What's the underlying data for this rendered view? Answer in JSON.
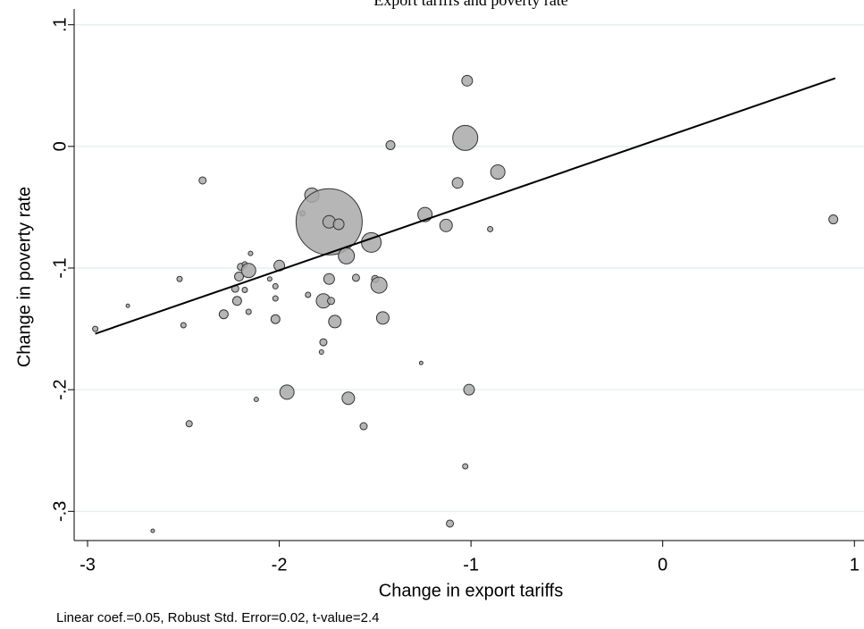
{
  "chart_data": {
    "type": "scatter",
    "title": "Export tariffs and poverty rate",
    "x_label": "Change in export tariffs",
    "y_label": "Change in poverty rate",
    "note": "Linear coef.=0.05, Robust Std. Error=0.02, t-value=2.4",
    "xlim": [
      -3.07,
      1.05
    ],
    "ylim": [
      -0.324,
      0.113
    ],
    "xticks": [
      -3,
      -2,
      -1,
      0,
      1
    ],
    "yticks": [
      {
        "value": 0.1,
        "label": ".1"
      },
      0,
      {
        "value": -0.1,
        "label": "-.1"
      },
      {
        "value": -0.2,
        "label": "-.2"
      },
      {
        "value": -0.3,
        "label": "-.3"
      }
    ],
    "grid": true,
    "color": "#a9a9a9",
    "x": [
      -2.96,
      -2.79,
      -2.66,
      -2.52,
      -2.5,
      -2.47,
      -2.4,
      -2.29,
      -2.22,
      -2.23,
      -2.21,
      -2.2,
      -2.18,
      -2.18,
      -2.16,
      -2.15,
      -2.16,
      -2.12,
      -2.05,
      -2.02,
      -2.02,
      -2.02,
      -2.0,
      -1.96,
      -1.88,
      -1.85,
      -1.83,
      -1.78,
      -1.77,
      -1.77,
      -1.74,
      -1.74,
      -1.73,
      -1.71,
      -1.74,
      -1.69,
      -1.65,
      -1.64,
      -1.6,
      -1.56,
      -1.52,
      -1.5,
      -1.48,
      -1.46,
      -1.42,
      -1.26,
      -1.24,
      -1.13,
      -1.11,
      -1.07,
      -1.03,
      -1.03,
      -1.02,
      -1.01,
      -0.9,
      -0.86,
      0.89
    ],
    "values": [
      -0.15,
      -0.131,
      -0.316,
      -0.109,
      -0.147,
      -0.228,
      -0.028,
      -0.138,
      -0.127,
      -0.117,
      -0.107,
      -0.099,
      -0.097,
      -0.118,
      -0.102,
      -0.088,
      -0.136,
      -0.208,
      -0.109,
      -0.125,
      -0.115,
      -0.142,
      -0.098,
      -0.202,
      -0.055,
      -0.122,
      -0.04,
      -0.169,
      -0.161,
      -0.127,
      -0.062,
      -0.109,
      -0.127,
      -0.144,
      -0.062,
      -0.064,
      -0.09,
      -0.207,
      -0.108,
      -0.23,
      -0.079,
      -0.109,
      -0.114,
      -0.141,
      0.001,
      -0.178,
      -0.056,
      -0.065,
      -0.31,
      -0.03,
      0.007,
      -0.263,
      0.054,
      -0.2,
      -0.068,
      -0.021,
      -0.06
    ],
    "sizes": [
      3,
      2,
      2,
      3,
      3,
      3.5,
      4,
      5,
      5,
      4,
      5,
      4,
      3,
      3,
      8,
      2.5,
      3,
      2.5,
      2.5,
      3,
      3,
      5,
      6,
      8,
      3,
      3,
      8,
      2.5,
      4,
      8,
      37,
      6,
      4,
      7,
      7,
      6,
      9,
      7,
      4,
      4,
      11,
      4,
      9,
      7,
      5,
      2,
      8,
      7,
      4,
      6,
      14,
      3,
      6,
      6,
      3,
      8,
      5
    ],
    "fit": {
      "x": [
        -2.96,
        0.9
      ],
      "y": [
        -0.154,
        0.056
      ]
    }
  }
}
